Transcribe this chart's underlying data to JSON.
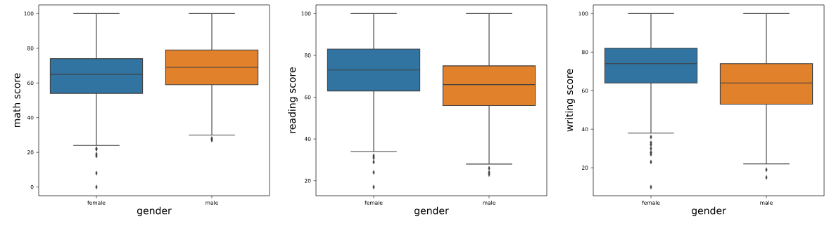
{
  "chart_data": [
    {
      "type": "box",
      "xlabel": "gender",
      "ylabel": "math score",
      "categories": [
        "female",
        "male"
      ],
      "colors": [
        "#3274a1",
        "#e1812c"
      ],
      "marker": "diamond",
      "ylim": [
        -5,
        105
      ],
      "yticks": [
        0,
        20,
        40,
        60,
        80,
        100
      ],
      "boxes": [
        {
          "low": 24,
          "q1": 54,
          "median": 65,
          "q3": 74,
          "high": 100,
          "outliers": [
            22,
            22,
            19,
            18,
            8,
            0
          ]
        },
        {
          "low": 30,
          "q1": 59,
          "median": 69,
          "q3": 79,
          "high": 100,
          "outliers": [
            28,
            27
          ]
        }
      ]
    },
    {
      "type": "box",
      "xlabel": "gender",
      "ylabel": "reading score",
      "categories": [
        "female",
        "male"
      ],
      "colors": [
        "#3274a1",
        "#e1812c"
      ],
      "marker": "diamond",
      "ylim": [
        12.85,
        104.15
      ],
      "yticks": [
        20,
        40,
        60,
        80,
        100
      ],
      "boxes": [
        {
          "low": 34,
          "q1": 63,
          "median": 73,
          "q3": 83,
          "high": 100,
          "outliers": [
            32,
            31,
            29,
            24,
            17
          ]
        },
        {
          "low": 28,
          "q1": 56,
          "median": 66,
          "q3": 75,
          "high": 100,
          "outliers": [
            26,
            24,
            23
          ]
        }
      ]
    },
    {
      "type": "box",
      "xlabel": "gender",
      "ylabel": "writing score",
      "categories": [
        "female",
        "male"
      ],
      "colors": [
        "#3274a1",
        "#e1812c"
      ],
      "marker": "diamond",
      "ylim": [
        5.5,
        104.5
      ],
      "yticks": [
        20,
        40,
        60,
        80,
        100
      ],
      "boxes": [
        {
          "low": 38,
          "q1": 64,
          "median": 74,
          "q3": 82,
          "high": 100,
          "outliers": [
            36,
            33,
            32,
            30,
            28,
            27,
            23,
            10
          ]
        },
        {
          "low": 22,
          "q1": 53,
          "median": 64,
          "q3": 74,
          "high": 100,
          "outliers": [
            19,
            15
          ]
        }
      ]
    }
  ]
}
